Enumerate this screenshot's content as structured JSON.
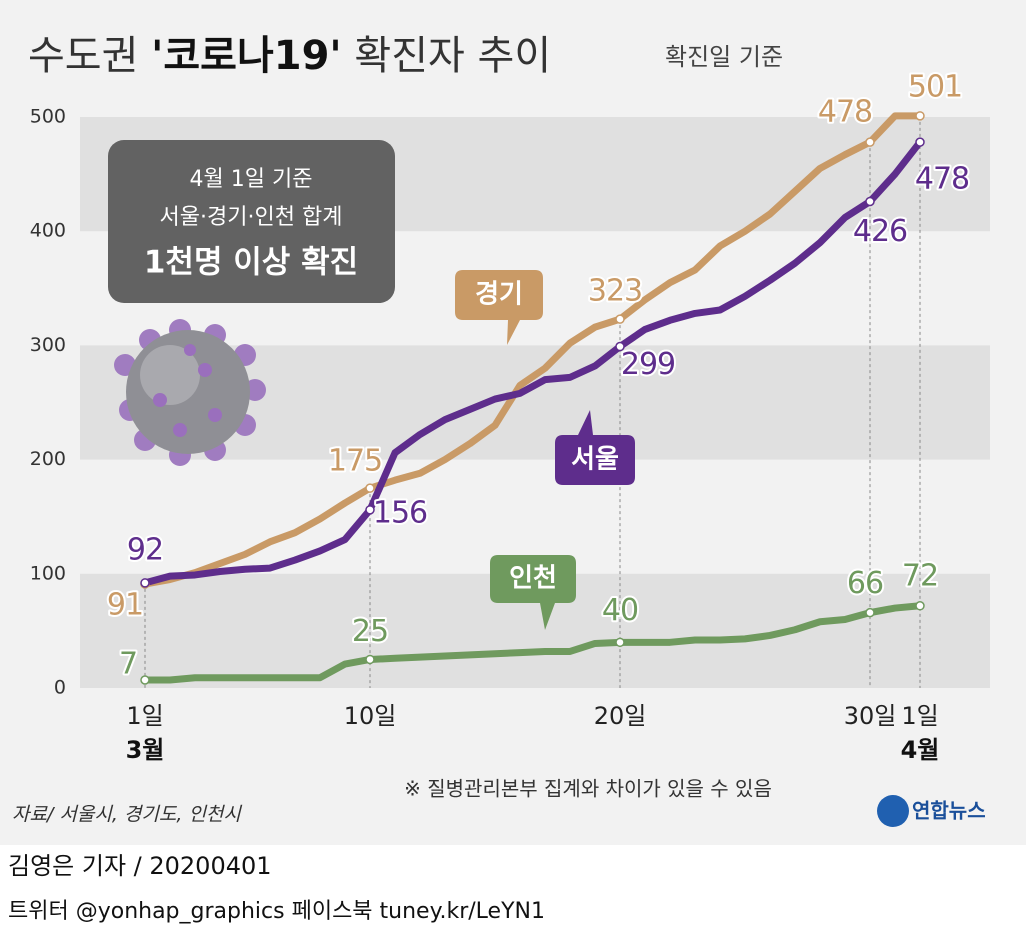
{
  "chart_data": {
    "type": "line",
    "title_parts": [
      "수도권 ",
      "'코로나19'",
      " 확진자 추이"
    ],
    "subtitle": "확진일 기준",
    "callout": [
      "4월 1일 기준",
      "서울·경기·인천 합계",
      "1천명 이상 확진"
    ],
    "categories": [
      "1일",
      null,
      null,
      null,
      null,
      null,
      null,
      null,
      null,
      "10일",
      null,
      null,
      null,
      null,
      null,
      null,
      null,
      null,
      null,
      "20일",
      null,
      null,
      null,
      null,
      null,
      null,
      null,
      null,
      null,
      "30일",
      null,
      "1일"
    ],
    "month_labels": [
      "3월",
      "4월"
    ],
    "series": [
      {
        "name": "경기",
        "color": "#c99a66",
        "values": [
          91,
          95,
          101,
          109,
          117,
          128,
          136,
          148,
          162,
          175,
          182,
          188,
          200,
          214,
          230,
          265,
          280,
          302,
          316,
          323,
          340,
          355,
          366,
          387,
          400,
          415,
          435,
          455,
          467,
          478,
          501,
          501
        ]
      },
      {
        "name": "서울",
        "color": "#5e2d8c",
        "values": [
          92,
          98,
          99,
          102,
          104,
          105,
          112,
          120,
          130,
          156,
          206,
          222,
          235,
          244,
          253,
          258,
          270,
          272,
          282,
          299,
          314,
          322,
          328,
          331,
          343,
          357,
          372,
          390,
          412,
          426,
          450,
          478
        ]
      },
      {
        "name": "인천",
        "color": "#6f9a5e",
        "values": [
          7,
          7,
          9,
          9,
          9,
          9,
          9,
          9,
          21,
          25,
          26,
          27,
          28,
          29,
          30,
          31,
          32,
          32,
          39,
          40,
          40,
          40,
          42,
          42,
          43,
          46,
          51,
          58,
          60,
          66,
          70,
          72
        ]
      }
    ],
    "ylim": [
      0,
      500
    ],
    "yticks": [
      0,
      100,
      200,
      300,
      400,
      500
    ],
    "note": "※ 질병관리본부 집계와 차이가 있을 수 있음",
    "source": "자료/ 서울시, 경기도, 인천시",
    "logo": "연합뉴스",
    "byline": "김영은 기자 / 20200401",
    "social": "트위터 @yonhap_graphics  페이스북 tuney.kr/LeYN1"
  }
}
